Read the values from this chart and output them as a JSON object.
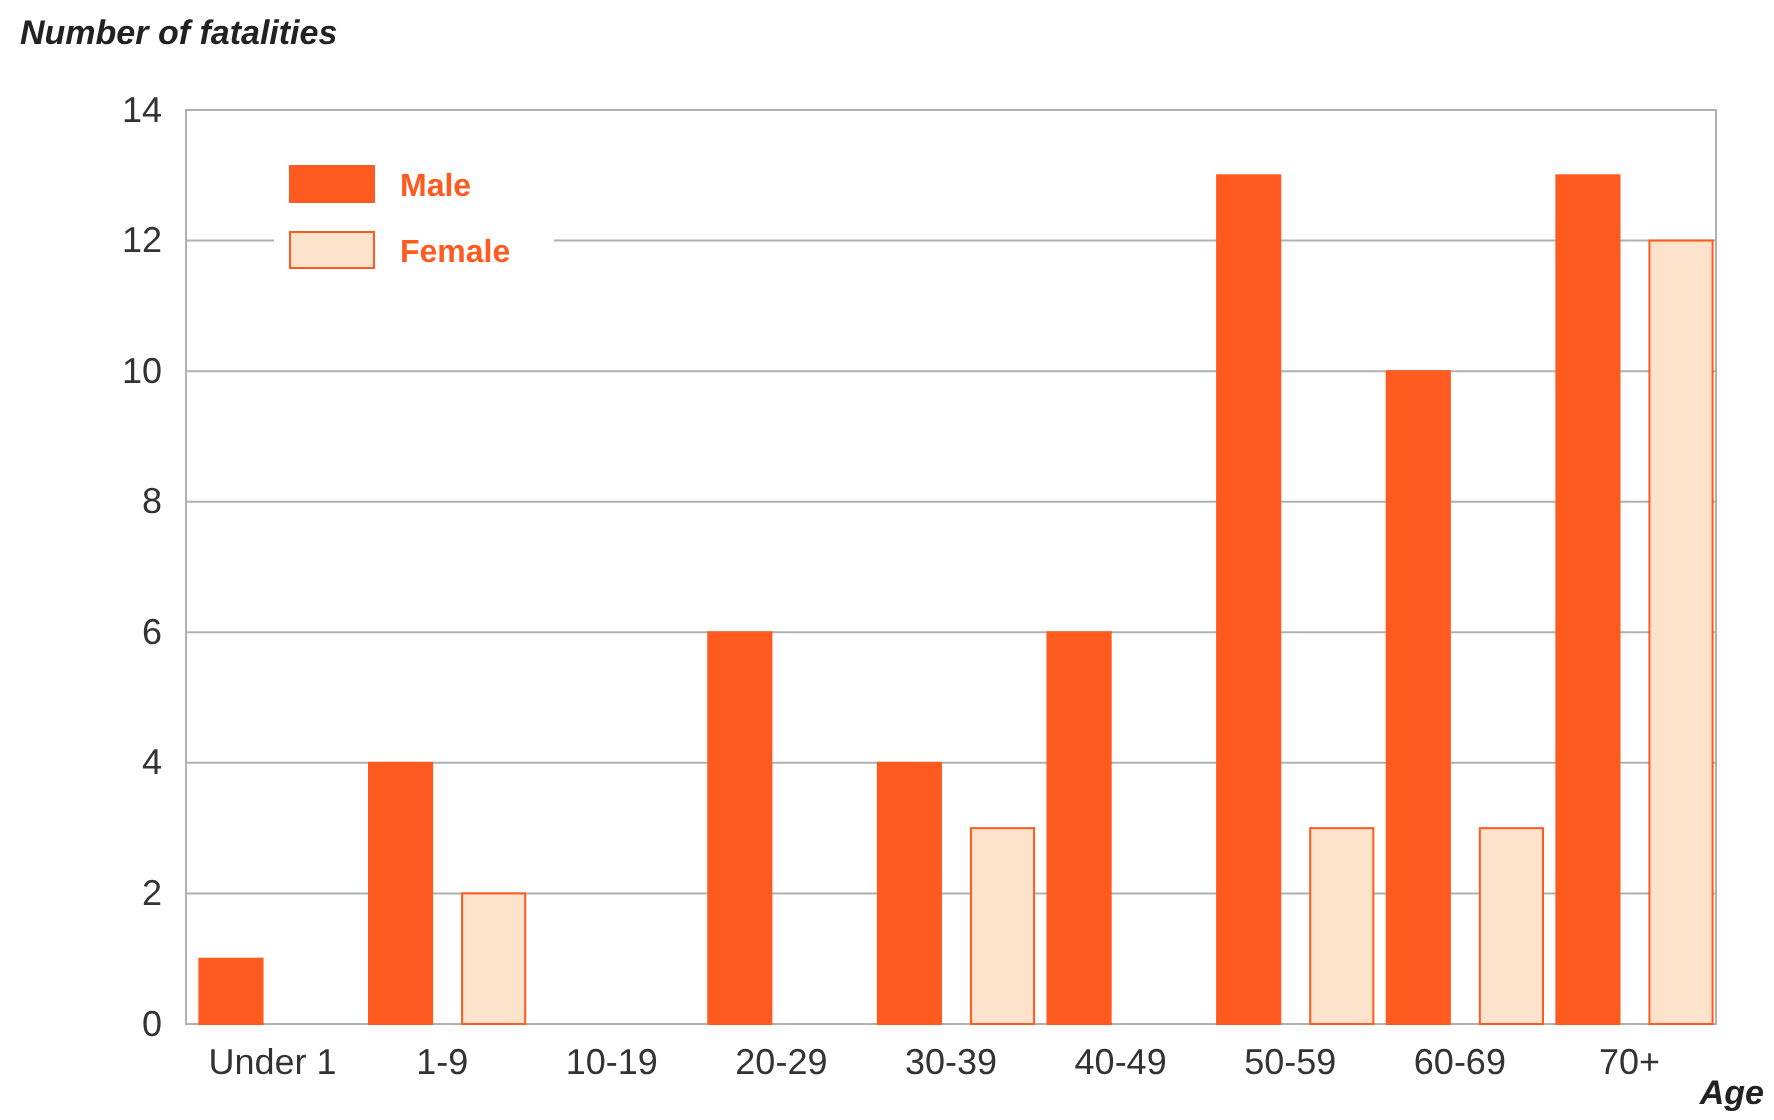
{
  "chart_data": {
    "type": "bar",
    "ylabel": "Number of fatalities",
    "xlabel": "Age",
    "categories": [
      "Under 1",
      "1-9",
      "10-19",
      "20-29",
      "30-39",
      "40-49",
      "50-59",
      "60-69",
      "70+"
    ],
    "series": [
      {
        "name": "Male",
        "color": "#ff5a1f",
        "values": [
          1,
          4,
          0,
          6,
          4,
          6,
          13,
          10,
          13
        ]
      },
      {
        "name": "Female",
        "color": "#fde3cc",
        "values": [
          0,
          2,
          0,
          0,
          3,
          0,
          3,
          3,
          12
        ]
      }
    ],
    "ylim": [
      0,
      14
    ],
    "yticks": [
      0,
      2,
      4,
      6,
      8,
      10,
      12,
      14
    ],
    "grid": "y",
    "legend": "top left"
  }
}
